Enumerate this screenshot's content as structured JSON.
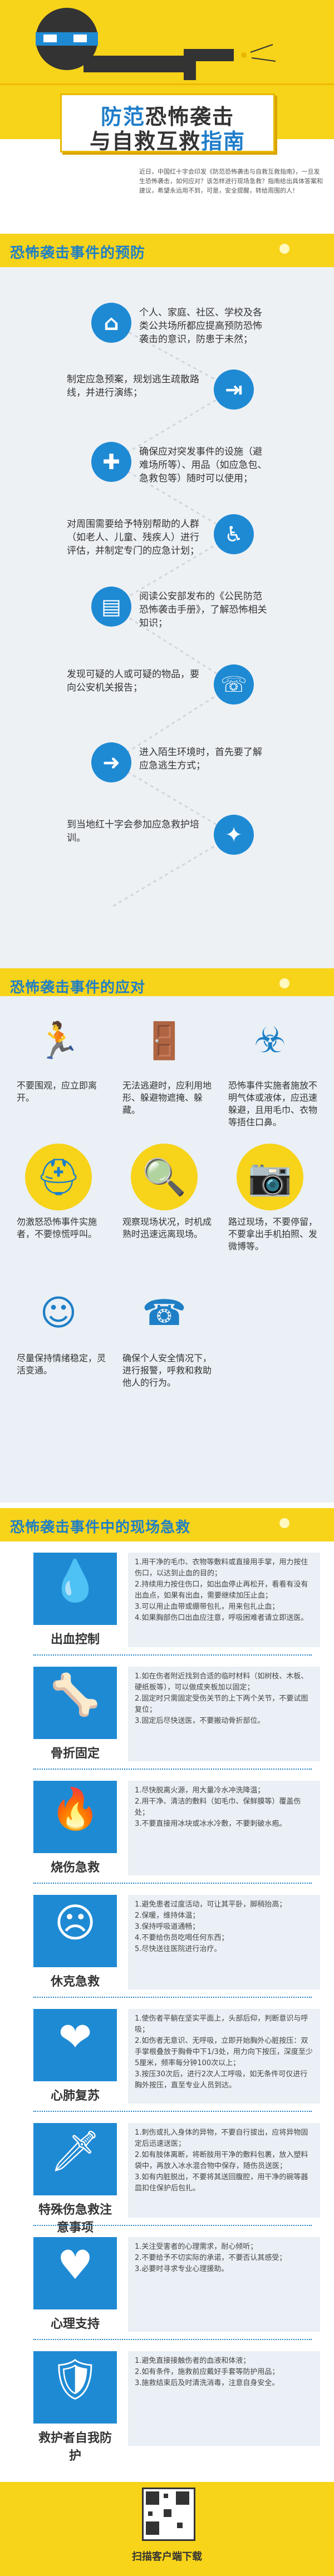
{
  "header": {
    "title_line1_highlight": "防范",
    "title_line1_rest": "恐怖袭击",
    "title_line2_rest": "与自救互救",
    "title_line2_highlight": "指南",
    "intro": "近日，中国红十字会印发《防范恐怖袭击与自救互救指南》，一旦发生恐怖袭击，如何应对？该怎样进行现场急救？指南给出具体答案和建议，希望永远用不到，可是，安全提醒，转给周围的人！"
  },
  "section1": {
    "title": "恐怖袭击事件的预防",
    "steps": [
      {
        "icon": "house-person-icon",
        "glyph": "⌂",
        "text": "个人、家庭、社区、学校及各类公共场所都应提高预防恐怖袭击的意识，防患于未然；"
      },
      {
        "icon": "exit-door-icon",
        "glyph": "⇥",
        "text": "制定应急预案，规划逃生疏散路线，并进行演练；"
      },
      {
        "icon": "first-aid-kit-icon",
        "glyph": "✚",
        "text": "确保应对突发事件的设施（避难场所等）、用品（如应急包、急救包等）随时可以使用；"
      },
      {
        "icon": "wheelchair-icon",
        "glyph": "♿",
        "text": "对周围需要给予特别帮助的人群（如老人、儿童、残疾人）进行评估，并制定专门的应急计划；"
      },
      {
        "icon": "handbook-icon",
        "glyph": "▤",
        "text": "阅读公安部发布的《公民防范恐怖袭击手册》，了解恐怖相关知识；"
      },
      {
        "icon": "phone-110-icon",
        "glyph": "☏",
        "text": "发现可疑的人或可疑的物品，要向公安机关报告；"
      },
      {
        "icon": "arrow-right-icon",
        "glyph": "➜",
        "text": "进入陌生环境时，首先要了解应急逃生方式；"
      },
      {
        "icon": "cpr-training-icon",
        "glyph": "✦",
        "text": "到当地红十字会参加应急救护培训。"
      }
    ]
  },
  "section2": {
    "title": "恐怖袭击事件的应对",
    "items": [
      {
        "icon": "running-person-icon",
        "glyph": "🏃",
        "text": "不要围观，应立即离开。"
      },
      {
        "icon": "hide-behind-door-icon",
        "glyph": "🚪",
        "text": "无法逃避时，应利用地形、躲避物遮掩、躲藏。"
      },
      {
        "icon": "gas-cover-nose-icon",
        "glyph": "☣",
        "text": "恐怖事件实施者施放不明气体或液体，应迅速躲避，且用毛巾、衣物等捂住口鼻。"
      },
      {
        "icon": "helmet-police-icon",
        "glyph": "⛑",
        "text": "勿激怒恐怖事件实施者，不要惊慌呼叫。"
      },
      {
        "icon": "magnifier-icon",
        "glyph": "🔍",
        "text": "观察现场状况，时机成熟时迅速远离现场。"
      },
      {
        "icon": "no-camera-icon",
        "glyph": "📷",
        "text": "路过现场，不要停留，不要拿出手机拍照、发微博等。"
      },
      {
        "icon": "calm-person-icon",
        "glyph": "☺",
        "text": "尽量保持情绪稳定，灵活变通。"
      },
      {
        "icon": "telephone-icon",
        "glyph": "☎",
        "text": "确保个人安全情况下，进行报警，呼救和救助他人的行为。"
      }
    ]
  },
  "section3": {
    "title": "恐怖袭击事件中的现场急救",
    "items": [
      {
        "label": "出血控制",
        "icon": "blood-drop-icon",
        "glyph": "💧",
        "text": "1.用干净的毛巾、衣物等敷料或直接用手掌，用力按住伤口，以达到止血的目的；\n2.持续用力按住伤口，如出血停止再松开，看看有没有出血点，如果有出血，需要继续加压止血；\n3.可以用止血带或绷带包扎，用来包扎止血；\n4.如果胸部伤口出血应注意，呼吸困难者请立即送医。"
      },
      {
        "label": "骨折固定",
        "icon": "bone-icon",
        "glyph": "🦴",
        "text": "1.如在伤者附近找到合适的临时材料（如树枝、木板、硬纸板等），可以做成夹板加以固定；\n2.固定时只需固定受伤关节的上下两个关节，不要试图复位；\n3.固定后尽快送医，不要搬动骨折部位。"
      },
      {
        "label": "烧伤急救",
        "icon": "flame-icon",
        "glyph": "🔥",
        "text": "1.尽快脱离火源，用大量冷水冲洗降温；\n2.用干净、清洁的敷料（如毛巾、保鲜膜等）覆盖伤处；\n3.不要直接用冰块或冰水冷敷，不要刺破水疱。"
      },
      {
        "label": "休克急救",
        "icon": "faint-face-icon",
        "glyph": "☹",
        "text": "1.避免患者过度活动，可让其平卧，脚稍抬高；\n2.保暖，维持体温；\n3.保持呼吸道通畅；\n4.不要给伤员吃喝任何东西；\n5.尽快送往医院进行治疗。"
      },
      {
        "label": "心肺复苏",
        "icon": "cpr-icon",
        "glyph": "❤",
        "text": "1.使伤者平躺在坚实平面上，头部后仰，判断意识与呼吸；\n2.如伤者无意识、无呼吸，立即开始胸外心脏按压：双手掌根叠放于胸骨中下1/3处，用力向下按压，深度至少5厘米，频率每分钟100次以上；\n3.按压30次后，进行2次人工呼吸，如无条件可仅进行胸外按压，直至专业人员到达。"
      },
      {
        "label": "特殊伤急救注意事项",
        "icon": "knife-icon",
        "glyph": "🗡",
        "text": "1.刺伤或扎入身体的异物，不要自行拔出，应将异物固定后迅速送医；\n2.如有肢体离断，将断肢用干净的敷料包裹，放入塑料袋中，再放入冰水混合物中保存，随伤员送医；\n3.如有内脏脱出，不要将其送回腹腔，用干净的碗等器皿扣住保护后包扎。"
      },
      {
        "label": "心理支持",
        "icon": "heart-icon",
        "glyph": "♥",
        "text": "1.关注受害者的心理需求，耐心倾听；\n2.不要给予不切实际的承诺，不要否认其感受；\n3.必要时寻求专业心理援助。"
      },
      {
        "label": "救护者自我防护",
        "icon": "shield-icon",
        "glyph": "🛡",
        "text": "1.避免直接接触伤者的血液和体液；\n2.如有条件，施救前应戴好手套等防护用品；\n3.施救结束后及时清洗消毒，注意自身安全。"
      }
    ]
  },
  "footer": {
    "label": "扫描客户端下载"
  },
  "colors": {
    "yellow": "#f7d31a",
    "blue": "#1f8ad4",
    "dark": "#333333"
  }
}
